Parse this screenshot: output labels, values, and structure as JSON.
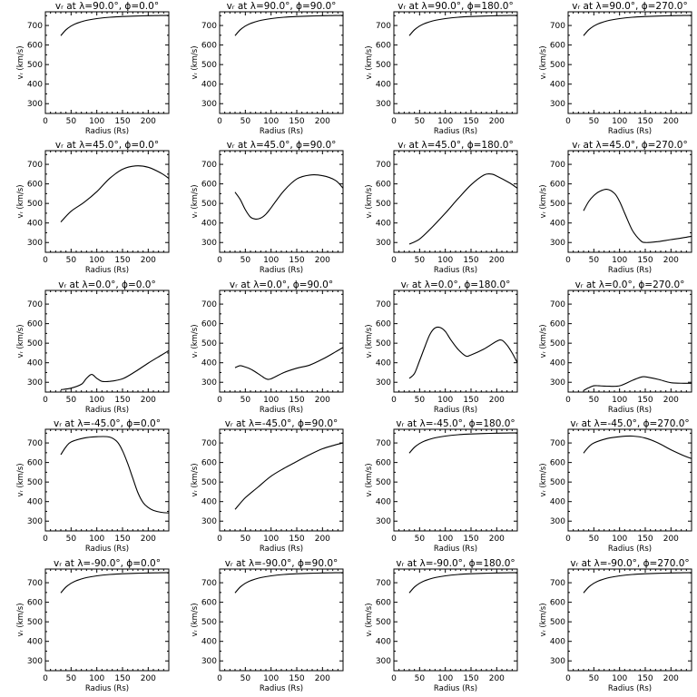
{
  "labels": {
    "xlabel": "Radius (Rs)",
    "ylabel": "vᵣ (km/s)",
    "xticks": [
      "0",
      "50",
      "100",
      "150",
      "200"
    ],
    "yticks": [
      "300",
      "400",
      "500",
      "600",
      "700"
    ]
  },
  "chart_data": [
    {
      "type": "line",
      "title": "vᵣ at λ=90.0°, ϕ=0.0°",
      "xlabel": "Radius (Rs)",
      "ylabel": "vᵣ (km/s)",
      "xlim": [
        0,
        240
      ],
      "ylim": [
        250,
        770
      ],
      "x": [
        30,
        40,
        50,
        60,
        75,
        100,
        125,
        150,
        175,
        200,
        225,
        240
      ],
      "y": [
        648,
        678,
        697,
        710,
        723,
        735,
        742,
        746,
        748,
        750,
        751,
        752
      ]
    },
    {
      "type": "line",
      "title": "vᵣ at λ=90.0°, ϕ=90.0°",
      "xlabel": "Radius (Rs)",
      "ylabel": "vᵣ (km/s)",
      "xlim": [
        0,
        240
      ],
      "ylim": [
        250,
        770
      ],
      "x": [
        30,
        40,
        50,
        60,
        75,
        100,
        125,
        150,
        175,
        200,
        225,
        240
      ],
      "y": [
        648,
        678,
        697,
        710,
        723,
        735,
        742,
        746,
        748,
        750,
        751,
        752
      ]
    },
    {
      "type": "line",
      "title": "vᵣ at λ=90.0°, ϕ=180.0°",
      "xlabel": "Radius (Rs)",
      "ylabel": "vᵣ (km/s)",
      "xlim": [
        0,
        240
      ],
      "ylim": [
        250,
        770
      ],
      "x": [
        30,
        40,
        50,
        60,
        75,
        100,
        125,
        150,
        175,
        200,
        225,
        240
      ],
      "y": [
        648,
        678,
        697,
        710,
        723,
        735,
        742,
        746,
        748,
        750,
        751,
        752
      ]
    },
    {
      "type": "line",
      "title": "vᵣ at λ=90.0°, ϕ=270.0°",
      "xlabel": "Radius (Rs)",
      "ylabel": "vᵣ (km/s)",
      "xlim": [
        0,
        240
      ],
      "ylim": [
        250,
        770
      ],
      "x": [
        30,
        40,
        50,
        60,
        75,
        100,
        125,
        150,
        175,
        200,
        225,
        240
      ],
      "y": [
        648,
        678,
        697,
        710,
        723,
        735,
        742,
        746,
        748,
        750,
        751,
        752
      ]
    },
    {
      "type": "line",
      "title": "vᵣ at λ=45.0°, ϕ=0.0°",
      "xlabel": "Radius (Rs)",
      "ylabel": "vᵣ (km/s)",
      "xlim": [
        0,
        240
      ],
      "ylim": [
        250,
        770
      ],
      "x": [
        30,
        50,
        75,
        100,
        125,
        150,
        175,
        200,
        225,
        240
      ],
      "y": [
        405,
        460,
        505,
        560,
        628,
        675,
        692,
        685,
        655,
        628
      ]
    },
    {
      "type": "line",
      "title": "vᵣ at λ=45.0°, ϕ=90.0°",
      "xlabel": "Radius (Rs)",
      "ylabel": "vᵣ (km/s)",
      "xlim": [
        0,
        240
      ],
      "ylim": [
        250,
        770
      ],
      "x": [
        30,
        40,
        50,
        60,
        70,
        80,
        90,
        100,
        125,
        150,
        175,
        200,
        225,
        240
      ],
      "y": [
        558,
        520,
        468,
        430,
        420,
        425,
        445,
        478,
        565,
        625,
        645,
        642,
        618,
        578
      ]
    },
    {
      "type": "line",
      "title": "vᵣ at λ=45.0°, ϕ=180.0°",
      "xlabel": "Radius (Rs)",
      "ylabel": "vᵣ (km/s)",
      "xlim": [
        0,
        240
      ],
      "ylim": [
        250,
        770
      ],
      "x": [
        30,
        50,
        75,
        100,
        125,
        150,
        175,
        190,
        200,
        225,
        240
      ],
      "y": [
        292,
        318,
        380,
        450,
        525,
        595,
        645,
        650,
        640,
        605,
        578
      ]
    },
    {
      "type": "line",
      "title": "vᵣ at λ=45.0°, ϕ=270.0°",
      "xlabel": "Radius (Rs)",
      "ylabel": "vᵣ (km/s)",
      "xlim": [
        0,
        240
      ],
      "ylim": [
        250,
        770
      ],
      "x": [
        30,
        40,
        50,
        60,
        75,
        90,
        100,
        110,
        125,
        140,
        150,
        175,
        200,
        225,
        240
      ],
      "y": [
        462,
        510,
        540,
        560,
        572,
        552,
        510,
        450,
        362,
        312,
        300,
        305,
        315,
        325,
        332
      ]
    },
    {
      "type": "line",
      "title": "vᵣ at λ=0.0°, ϕ=0.0°",
      "xlabel": "Radius (Rs)",
      "ylabel": "vᵣ (km/s)",
      "xlim": [
        0,
        240
      ],
      "ylim": [
        250,
        770
      ],
      "x": [
        30,
        50,
        70,
        80,
        90,
        100,
        110,
        125,
        150,
        175,
        200,
        225,
        240
      ],
      "y": [
        262,
        270,
        290,
        320,
        340,
        320,
        305,
        305,
        318,
        355,
        398,
        438,
        462
      ]
    },
    {
      "type": "line",
      "title": "vᵣ at λ=0.0°, ϕ=90.0°",
      "xlabel": "Radius (Rs)",
      "ylabel": "vᵣ (km/s)",
      "xlim": [
        0,
        240
      ],
      "ylim": [
        250,
        770
      ],
      "x": [
        30,
        40,
        50,
        60,
        70,
        80,
        90,
        100,
        125,
        150,
        175,
        200,
        225,
        240
      ],
      "y": [
        375,
        385,
        378,
        368,
        352,
        335,
        318,
        318,
        350,
        372,
        388,
        418,
        455,
        478
      ]
    },
    {
      "type": "line",
      "title": "vᵣ at λ=0.0°, ϕ=180.0°",
      "xlabel": "Radius (Rs)",
      "ylabel": "vᵣ (km/s)",
      "xlim": [
        0,
        240
      ],
      "ylim": [
        250,
        770
      ],
      "x": [
        30,
        40,
        50,
        60,
        70,
        80,
        90,
        100,
        110,
        125,
        140,
        150,
        175,
        200,
        210,
        220,
        230,
        240
      ],
      "y": [
        320,
        345,
        410,
        480,
        545,
        578,
        580,
        560,
        520,
        468,
        435,
        440,
        470,
        510,
        515,
        490,
        450,
        400
      ]
    },
    {
      "type": "line",
      "title": "vᵣ at λ=0.0°, ϕ=270.0°",
      "xlabel": "Radius (Rs)",
      "ylabel": "vᵣ (km/s)",
      "xlim": [
        0,
        240
      ],
      "ylim": [
        250,
        770
      ],
      "x": [
        30,
        40,
        50,
        60,
        75,
        100,
        125,
        140,
        150,
        175,
        200,
        225,
        240
      ],
      "y": [
        258,
        272,
        282,
        282,
        280,
        282,
        310,
        325,
        328,
        315,
        298,
        295,
        295
      ]
    },
    {
      "type": "line",
      "title": "vᵣ at λ=-45.0°, ϕ=0.0°",
      "xlabel": "Radius (Rs)",
      "ylabel": "vᵣ (km/s)",
      "xlim": [
        0,
        240
      ],
      "ylim": [
        250,
        770
      ],
      "x": [
        30,
        40,
        50,
        75,
        100,
        125,
        140,
        150,
        160,
        170,
        180,
        190,
        200,
        210,
        225,
        240
      ],
      "y": [
        640,
        680,
        705,
        725,
        732,
        730,
        705,
        660,
        595,
        520,
        445,
        395,
        370,
        355,
        345,
        342
      ]
    },
    {
      "type": "line",
      "title": "vᵣ at λ=-45.0°, ϕ=90.0°",
      "xlabel": "Radius (Rs)",
      "ylabel": "vᵣ (km/s)",
      "xlim": [
        0,
        240
      ],
      "ylim": [
        250,
        770
      ],
      "x": [
        30,
        50,
        75,
        100,
        125,
        150,
        175,
        200,
        225,
        240
      ],
      "y": [
        360,
        420,
        475,
        530,
        570,
        605,
        640,
        670,
        690,
        700
      ]
    },
    {
      "type": "line",
      "title": "vᵣ at λ=-45.0°, ϕ=180.0°",
      "xlabel": "Radius (Rs)",
      "ylabel": "vᵣ (km/s)",
      "xlim": [
        0,
        240
      ],
      "ylim": [
        250,
        770
      ],
      "x": [
        30,
        40,
        50,
        60,
        75,
        100,
        125,
        150,
        175,
        200,
        225,
        240
      ],
      "y": [
        648,
        678,
        697,
        710,
        723,
        735,
        742,
        746,
        748,
        750,
        751,
        752
      ]
    },
    {
      "type": "line",
      "title": "vᵣ at λ=-45.0°, ϕ=270.0°",
      "xlabel": "Radius (Rs)",
      "ylabel": "vᵣ (km/s)",
      "xlim": [
        0,
        240
      ],
      "ylim": [
        250,
        770
      ],
      "x": [
        30,
        40,
        50,
        75,
        100,
        125,
        150,
        175,
        200,
        225,
        240
      ],
      "y": [
        648,
        680,
        700,
        722,
        732,
        735,
        725,
        700,
        665,
        635,
        620
      ]
    },
    {
      "type": "line",
      "title": "vᵣ at λ=-90.0°, ϕ=0.0°",
      "xlabel": "Radius (Rs)",
      "ylabel": "vᵣ (km/s)",
      "xlim": [
        0,
        240
      ],
      "ylim": [
        250,
        770
      ],
      "x": [
        30,
        40,
        50,
        60,
        75,
        100,
        125,
        150,
        175,
        200,
        225,
        240
      ],
      "y": [
        648,
        678,
        697,
        710,
        723,
        735,
        742,
        746,
        748,
        750,
        751,
        752
      ]
    },
    {
      "type": "line",
      "title": "vᵣ at λ=-90.0°, ϕ=90.0°",
      "xlabel": "Radius (Rs)",
      "ylabel": "vᵣ (km/s)",
      "xlim": [
        0,
        240
      ],
      "ylim": [
        250,
        770
      ],
      "x": [
        30,
        40,
        50,
        60,
        75,
        100,
        125,
        150,
        175,
        200,
        225,
        240
      ],
      "y": [
        648,
        678,
        697,
        710,
        723,
        735,
        742,
        746,
        748,
        750,
        751,
        752
      ]
    },
    {
      "type": "line",
      "title": "vᵣ at λ=-90.0°, ϕ=180.0°",
      "xlabel": "Radius (Rs)",
      "ylabel": "vᵣ (km/s)",
      "xlim": [
        0,
        240
      ],
      "ylim": [
        250,
        770
      ],
      "x": [
        30,
        40,
        50,
        60,
        75,
        100,
        125,
        150,
        175,
        200,
        225,
        240
      ],
      "y": [
        648,
        678,
        697,
        710,
        723,
        735,
        742,
        746,
        748,
        750,
        751,
        752
      ]
    },
    {
      "type": "line",
      "title": "vᵣ at λ=-90.0°, ϕ=270.0°",
      "xlabel": "Radius (Rs)",
      "ylabel": "vᵣ (km/s)",
      "xlim": [
        0,
        240
      ],
      "ylim": [
        250,
        770
      ],
      "x": [
        30,
        40,
        50,
        60,
        75,
        100,
        125,
        150,
        175,
        200,
        225,
        240
      ],
      "y": [
        648,
        678,
        697,
        710,
        723,
        735,
        742,
        746,
        748,
        750,
        751,
        752
      ]
    }
  ]
}
